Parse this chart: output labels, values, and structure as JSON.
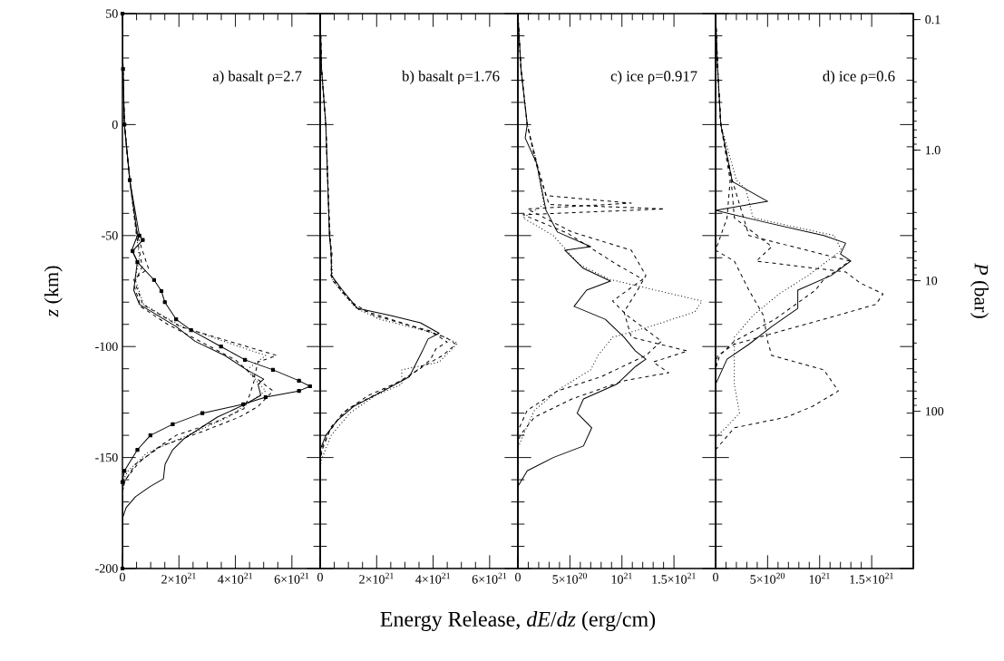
{
  "chart_data": [
    {
      "type": "line",
      "title": "a) basalt ρ=2.7",
      "ylabel": "*z* (km)",
      "xlabel": "Energy Release, *dE*/*dz* (erg/cm)",
      "xlim": [
        0,
        7e+21
      ],
      "xticks": [
        0,
        {
          "value": 2e+21,
          "label": "2×10$^{21}$"
        },
        {
          "value": 4e+21,
          "label": "4×10$^{21}$"
        },
        {
          "value": 6e+21,
          "label": "6×10$^{21}$"
        }
      ],
      "ylim": [
        -200,
        50
      ],
      "yticks": [
        -200,
        -150,
        -100,
        -50,
        0,
        50
      ],
      "series": [
        {
          "color": "#000000",
          "line_style": "solid",
          "x": [
            0,
            2e+19,
            7e+19,
            2.6e+20,
            5.3e+20,
            3.3e+20,
            5.3e+20,
            4e+20,
            6e+20,
            1.25e+21,
            1.9e+21,
            2.57e+21,
            3.62e+21,
            4.4e+21,
            5e+21,
            4.8e+21,
            4.9e+21,
            4.34e+21,
            3.36e+21,
            2.57e+21,
            2.17e+21,
            1.78e+21,
            1.51e+21,
            1.45e+21,
            9.9e+20,
            4.6e+20,
            1.3e+20,
            0,
            0
          ],
          "values": [
            50,
            25,
            0,
            -25,
            -50,
            -56.6,
            -61.5,
            -74.6,
            -81,
            -86,
            -91,
            -97.6,
            -104,
            -110.5,
            -114.7,
            -117,
            -122,
            -126,
            -131.8,
            -138.3,
            -141.6,
            -146.5,
            -153,
            -159.6,
            -163,
            -167.7,
            -172.6,
            -177.5,
            -200
          ]
        },
        {
          "color": "#000000",
          "line_style": "solid",
          "marker": "square",
          "x": [
            0,
            2e+19,
            7e+19,
            2.6e+20,
            6e+20,
            7.2e+20,
            3.6e+20,
            5.3e+20,
            1.12e+21,
            1.38e+21,
            1.5e+21,
            1.9e+21,
            2.43e+21,
            3.49e+21,
            4.34e+21,
            5.33e+21,
            6.25e+21,
            6.64e+21,
            6.25e+21,
            5.07e+21,
            4.28e+21,
            2.83e+21,
            1.78e+21,
            9.9e+20,
            5.3e+20,
            7e+19,
            0,
            0
          ],
          "values": [
            50,
            25,
            0,
            -25,
            -50,
            -52,
            -57,
            -62,
            -70,
            -75,
            -80,
            -87.7,
            -92.6,
            -100,
            -106,
            -110.5,
            -115.4,
            -117.9,
            -120,
            -122.8,
            -126,
            -130,
            -135,
            -140,
            -146.5,
            -156,
            -161,
            -200
          ]
        },
        {
          "color": "#000000",
          "line_style": "dashed",
          "x": [
            0,
            2e+19,
            7e+19,
            2.6e+20,
            5.3e+20,
            9.2e+20,
            4e+20,
            7.2e+20,
            2.04e+21,
            4.14e+21,
            5.46e+21,
            4.8e+21,
            4.67e+21,
            5.33e+21,
            4.8e+21,
            4.14e+21,
            2.83e+21,
            1.38e+21,
            4.6e+20,
            7e+19,
            0,
            0
          ],
          "values": [
            50,
            25,
            0,
            -25,
            -50,
            -64.8,
            -69.7,
            -81,
            -91,
            -99,
            -104,
            -107,
            -113.6,
            -120,
            -127,
            -131.8,
            -138.3,
            -144.8,
            -153,
            -161,
            -166,
            -200
          ]
        },
        {
          "color": "#000000",
          "line_style": "dotted",
          "x": [
            0,
            2e+19,
            7e+19,
            2.6e+20,
            5e+20,
            6e+20,
            4.5e+20,
            7.5e+20,
            2.1e+21,
            3.9e+21,
            5.07e+21,
            4.4e+21,
            5.07e+21,
            3.75e+21,
            2.3e+21,
            8.6e+20,
            2e+20,
            0,
            0
          ],
          "values": [
            50,
            25,
            0,
            -25,
            -50,
            -60,
            -69.7,
            -81,
            -91,
            -99,
            -104,
            -110.5,
            -120,
            -131.8,
            -140,
            -148,
            -156,
            -161,
            -200
          ]
        },
        {
          "color": "#000000",
          "line_style": "dashed",
          "x": [
            0,
            2e+19,
            7e+19,
            2.6e+20,
            5e+20,
            7e+20,
            4e+20,
            6.5e+20,
            1.6e+21,
            2.8e+21,
            4e+21,
            4.7e+21,
            4.5e+21,
            4.3e+21,
            3.3e+21,
            1.9e+21,
            1.2e+21,
            6e+20,
            1e+20,
            0,
            0
          ],
          "values": [
            50,
            25,
            0,
            -25,
            -50,
            -64,
            -72,
            -82,
            -90,
            -98,
            -106,
            -114,
            -122,
            -128,
            -134,
            -140,
            -146,
            -152,
            -160,
            -165,
            -200
          ]
        }
      ]
    },
    {
      "type": "line",
      "title": "b) basalt ρ=1.76",
      "tick_labels": "x",
      "xlim": [
        0,
        7e+21
      ],
      "xticks": [
        0,
        {
          "value": 2e+21,
          "label": "2×10$^{21}$"
        },
        {
          "value": 4e+21,
          "label": "4×10$^{21}$"
        },
        {
          "value": 6e+21,
          "label": "6×10$^{21}$"
        }
      ],
      "ylim": [
        -200,
        50
      ],
      "yticks": [
        -200,
        -150,
        -100,
        -50,
        0,
        50
      ],
      "series": [
        {
          "color": "#000000",
          "line_style": "solid",
          "x": [
            0,
            5e+19,
            2e+20,
            3.3e+20,
            3.9e+20,
            4e+20,
            7.9e+20,
            1.32e+21,
            2.5e+21,
            3.55e+21,
            4.21e+21,
            3.82e+21,
            3.62e+21,
            3.42e+21,
            3.16e+21,
            2.24e+21,
            1.18e+21,
            5.9e+20,
            2e+20,
            0,
            0
          ],
          "values": [
            50,
            25,
            0,
            -50,
            -58,
            -68,
            -74.6,
            -82.8,
            -86,
            -89.3,
            -94,
            -96.6,
            -102,
            -107,
            -113.6,
            -120,
            -127,
            -133.5,
            -140,
            -146.5,
            -200
          ]
        },
        {
          "color": "#000000",
          "line_style": "dashed",
          "x": [
            0,
            5e+19,
            2e+20,
            3.3e+20,
            4.2e+20,
            3.8e+20,
            7.5e+20,
            1.3e+21,
            2.5e+21,
            4.47e+21,
            4.8e+21,
            4.34e+21,
            3.68e+21,
            2.89e+21,
            1.71e+21,
            7.9e+20,
            3.3e+20,
            7e+19,
            0,
            0
          ],
          "values": [
            50,
            25,
            0,
            -50,
            -58,
            -68,
            -74.6,
            -82.8,
            -87.7,
            -96,
            -99,
            -104,
            -108.7,
            -115.4,
            -122,
            -130,
            -138.3,
            -146.5,
            -152,
            -200
          ]
        },
        {
          "color": "#000000",
          "line_style": "dotted",
          "x": [
            0,
            5e+19,
            2e+20,
            3.3e+20,
            4e+20,
            4.5e+20,
            8e+20,
            1.3e+21,
            2.1e+21,
            4.08e+21,
            4.87e+21,
            4.21e+21,
            2.89e+21,
            2.89e+21,
            1.97e+21,
            1.05e+21,
            3.9e+20,
            3e+19,
            0,
            0
          ],
          "values": [
            50,
            25,
            0,
            -50,
            -60,
            -70,
            -76,
            -83,
            -87.7,
            -94,
            -98.5,
            -107,
            -110.5,
            -117,
            -122,
            -130,
            -140,
            -151.5,
            -156,
            -200
          ]
        },
        {
          "color": "#000000",
          "line_style": "dashed",
          "x": [
            0,
            5e+19,
            2e+20,
            3.5e+20,
            4.2e+20,
            1.1e+21,
            1.9e+21,
            3.9e+21,
            4.5e+21,
            4.1e+21,
            3.9e+21,
            3.3e+21,
            2.2e+21,
            1e+21,
            4e+20,
            5e+19,
            0,
            0
          ],
          "values": [
            50,
            25,
            0,
            -50,
            -70,
            -80,
            -86,
            -93,
            -98,
            -101,
            -106,
            -112,
            -120,
            -128,
            -136,
            -146,
            -150,
            -200
          ]
        }
      ]
    },
    {
      "type": "line",
      "title": "c) ice ρ=0.917",
      "tick_labels": "x",
      "xlim": [
        0,
        1.9e+21
      ],
      "xticks": [
        0,
        {
          "value": 5e+20,
          "label": "5×10$^{20}$"
        },
        {
          "value": 1e+21,
          "label": "10$^{21}$"
        },
        {
          "value": 1.5e+21,
          "label": "1.5×10$^{21}$"
        }
      ],
      "ylim": [
        -200,
        50
      ],
      "yticks": [
        -200,
        -150,
        -100,
        -50,
        0,
        50
      ],
      "series": [
        {
          "color": "#000000",
          "line_style": "solid",
          "x": [
            0,
            3e+19,
            9e+19,
            7e+19,
            1.8e+20,
            2.7e+20,
            3.8e+20,
            7e+20,
            4.5e+20,
            6.3e+20,
            8.9e+20,
            6.6e+20,
            5.4e+20,
            8.4e+20,
            1.02e+21,
            1.13e+21,
            1.23e+21,
            1.13e+21,
            9.5e+20,
            6.3e+20,
            5.7e+20,
            7.1e+20,
            6.3e+20,
            3.4e+20,
            9e+19,
            0,
            0
          ],
          "values": [
            50,
            25,
            0,
            -6,
            -17.4,
            -38.6,
            -48.4,
            -55,
            -56.6,
            -64.8,
            -70.5,
            -74.6,
            -81.9,
            -87.7,
            -95.8,
            -102,
            -105.7,
            -109,
            -117,
            -123.6,
            -130,
            -136.6,
            -144.8,
            -150,
            -156,
            -163,
            -200
          ]
        },
        {
          "color": "#000000",
          "line_style": "dashed",
          "x": [
            0,
            3e+19,
            9e+19,
            1.8e+20,
            2.7e+20,
            1.09e+21,
            9e+19,
            5.2e+20,
            1.09e+21,
            1.23e+21,
            1.15e+21,
            1.02e+21,
            1.09e+21,
            1.63e+21,
            1.3e+21,
            1.45e+21,
            1.02e+21,
            5.2e+20,
            1.6e+20,
            2e+19,
            0,
            0
          ],
          "values": [
            50,
            25,
            0,
            -17,
            -32,
            -35.4,
            -38,
            -48.4,
            -56.6,
            -68,
            -74.6,
            -84.4,
            -95.8,
            -102,
            -107,
            -111.8,
            -115.4,
            -123.6,
            -131.8,
            -140,
            -145,
            -200
          ]
        },
        {
          "color": "#000000",
          "line_style": "dashed",
          "x": [
            0,
            3e+19,
            9e+19,
            1.7e+20,
            3e+20,
            1.41e+21,
            5e+19,
            4.8e+20,
            9.5e+20,
            1.2e+21,
            9.1e+20,
            1.05e+21,
            1.38e+21,
            1.23e+21,
            8e+20,
            3.8e+20,
            9e+19,
            0,
            0
          ],
          "values": [
            50,
            25,
            0,
            -17,
            -36,
            -38,
            -40.6,
            -49,
            -63,
            -69.7,
            -79.5,
            -86,
            -97.6,
            -104,
            -113.6,
            -120,
            -128.7,
            -138,
            -200
          ]
        },
        {
          "color": "#000000",
          "line_style": "dotted",
          "x": [
            0,
            3e+19,
            9e+19,
            1.8e+20,
            2.5e+20,
            5e+19,
            3.4e+20,
            5.9e+20,
            8.8e+20,
            1.77e+21,
            1.7e+21,
            1.27e+21,
            9.1e+20,
            7.7e+20,
            7e+20,
            4.1e+20,
            1.6e+20,
            5e+19,
            0,
            0
          ],
          "values": [
            50,
            25,
            0,
            -17,
            -36,
            -42,
            -50,
            -63,
            -69.7,
            -79.5,
            -84.4,
            -91,
            -95.8,
            -104,
            -110.5,
            -118.8,
            -128.7,
            -140,
            -146,
            -200
          ]
        }
      ]
    },
    {
      "type": "line",
      "title": "d) ice ρ=0.6",
      "tick_labels": "x",
      "y2label": "*P* (bar)",
      "xlim": [
        0,
        1.9e+21
      ],
      "xticks": [
        0,
        {
          "value": 5e+20,
          "label": "5×10$^{20}$"
        },
        {
          "value": 1e+21,
          "label": "10$^{21}$"
        },
        {
          "value": 1.5e+21,
          "label": "1.5×10$^{21}$"
        }
      ],
      "ylim": [
        -200,
        50
      ],
      "yticks": [
        -200,
        -150,
        -100,
        -50,
        0,
        50
      ],
      "log": "y2",
      "y2lim": [
        1600,
        0.09
      ],
      "y2ticks": [
        {
          "value": 0.1,
          "label": "0.1"
        },
        {
          "value": 1,
          "label": "1.0"
        },
        {
          "value": 10,
          "label": "10"
        },
        {
          "value": 100,
          "label": "100"
        }
      ],
      "series": [
        {
          "color": "#000000",
          "line_style": "solid",
          "x": [
            0,
            2e+19,
            5e+19,
            1.6e+20,
            5e+20,
            0,
            4.3e+20,
            1.04e+21,
            1.25e+21,
            1.2e+21,
            1.3e+21,
            1.11e+21,
            7.9e+20,
            7.9e+20,
            5.4e+20,
            3.2e+20,
            1.1e+20,
            0,
            0
          ],
          "values": [
            50,
            25,
            0,
            -25.6,
            -34.6,
            -38.6,
            -43.5,
            -50,
            -53.4,
            -58.3,
            -61.5,
            -68,
            -74.6,
            -82.8,
            -91,
            -99,
            -105.7,
            -117,
            -200
          ]
        },
        {
          "color": "#000000",
          "line_style": "dashed",
          "x": [
            0,
            2e+19,
            5e+19,
            1.5e+20,
            1.8e+20,
            5.4e+20,
            3.9e+20,
            1.25e+21,
            1.39e+21,
            1.61e+21,
            1.54e+21,
            1.04e+21,
            5.4e+20,
            1.8e+20,
            2e+19,
            0,
            0
          ],
          "values": [
            50,
            25,
            0,
            -25,
            -42,
            -55,
            -61.5,
            -66.4,
            -71.4,
            -76.3,
            -81,
            -87.7,
            -94.2,
            -99,
            -104,
            -110,
            -200
          ]
        },
        {
          "color": "#000000",
          "line_style": "dashed",
          "x": [
            0,
            2e+19,
            5e+19,
            1.4e+20,
            1.1e+20,
            0,
            1.8e+20,
            3.2e+20,
            4.6e+20,
            5e+20,
            5.4e+20,
            1.04e+21,
            1.18e+21,
            9.3e+20,
            6.8e+20,
            1.8e+20,
            0,
            0
          ],
          "values": [
            50,
            25,
            0,
            -25,
            -42,
            -56.6,
            -61.5,
            -74.6,
            -86,
            -97.6,
            -104,
            -110.5,
            -120,
            -127,
            -131.8,
            -136.6,
            -146.5,
            -200
          ]
        },
        {
          "color": "#000000",
          "line_style": "dotted",
          "x": [
            0,
            2e+19,
            5e+19,
            2e+20,
            2.9e+20,
            3.6e+20,
            1.14e+21,
            1.21e+21,
            8.9e+20,
            6.1e+20,
            3.6e+20,
            1.8e+20,
            1.8e+20,
            2.3e+20,
            1.1e+20,
            0,
            0
          ],
          "values": [
            50,
            25,
            0,
            -25,
            -29,
            -42,
            -50,
            -56.6,
            -68,
            -76.3,
            -86,
            -95.8,
            -117,
            -130,
            -136,
            -141,
            -200
          ]
        },
        {
          "color": "#000000",
          "line_style": "dashed",
          "x": [
            0,
            2e+19,
            5e+19,
            1.6e+20,
            3.2e+20,
            1.29e+21,
            1.04e+21,
            9.6e+20,
            5.7e+20,
            1.8e+20,
            4e+19,
            0,
            0
          ],
          "values": [
            50,
            25,
            0,
            -25,
            -50,
            -61.5,
            -69.7,
            -74.6,
            -87.7,
            -97.6,
            -104,
            -110,
            -200
          ]
        }
      ]
    }
  ]
}
